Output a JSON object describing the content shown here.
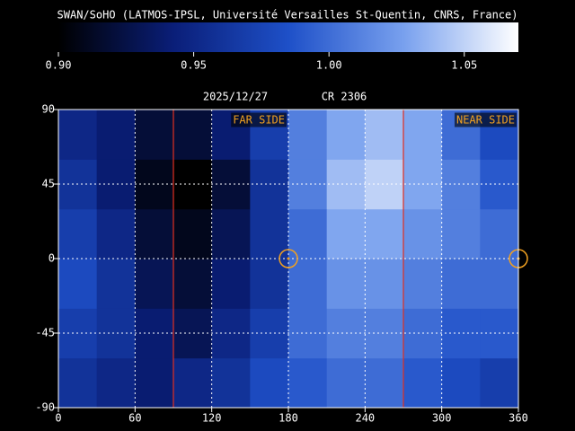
{
  "chart_data": {
    "type": "heatmap",
    "title": "SWAN/SoHO (LATMOS-IPSL, Université Versailles St-Quentin, CNRS, France)",
    "date": "2025/12/27",
    "rotation": "CR 2306",
    "colorlim": [
      0.9,
      1.07
    ],
    "colorticks": [
      {
        "value": 0.9,
        "label": "0.90"
      },
      {
        "value": 0.95,
        "label": "0.95"
      },
      {
        "value": 1.0,
        "label": "1.00"
      },
      {
        "value": 1.05,
        "label": "1.05"
      }
    ],
    "colormap": [
      "#000000",
      "#0a1e78",
      "#1e50c8",
      "#78a0ee",
      "#ffffff"
    ],
    "xlim": [
      0,
      360
    ],
    "ylim": [
      -90,
      90
    ],
    "xticks": [
      0,
      60,
      120,
      180,
      240,
      300,
      360
    ],
    "yticks": [
      -90,
      -45,
      0,
      45,
      90
    ],
    "grid": true,
    "xbins": [
      0,
      30,
      60,
      90,
      120,
      150,
      180,
      210,
      240,
      270,
      300,
      330,
      360
    ],
    "ybins": [
      -90,
      -60,
      -30,
      0,
      30,
      60,
      90
    ],
    "z": [
      [
        0.96,
        0.95,
        0.94,
        0.95,
        0.96,
        0.98,
        0.99,
        1.0,
        1.0,
        0.99,
        0.98,
        0.97
      ],
      [
        0.97,
        0.96,
        0.94,
        0.93,
        0.95,
        0.97,
        1.0,
        1.01,
        1.01,
        1.0,
        0.99,
        0.99
      ],
      [
        0.98,
        0.96,
        0.93,
        0.92,
        0.94,
        0.96,
        1.0,
        1.02,
        1.02,
        1.01,
        1.0,
        1.0
      ],
      [
        0.97,
        0.95,
        0.92,
        0.91,
        0.93,
        0.96,
        1.0,
        1.03,
        1.03,
        1.02,
        1.01,
        1.0
      ],
      [
        0.96,
        0.94,
        0.91,
        0.9,
        0.92,
        0.96,
        1.01,
        1.04,
        1.05,
        1.03,
        1.01,
        0.99
      ],
      [
        0.95,
        0.94,
        0.92,
        0.92,
        0.94,
        0.97,
        1.01,
        1.03,
        1.04,
        1.03,
        1.0,
        0.98
      ]
    ],
    "vlines": [
      90,
      270
    ],
    "vline_color": "#e03020",
    "annotations": [
      {
        "text": "FAR SIDE",
        "x": 180
      },
      {
        "text": "NEAR SIDE",
        "x": 360
      }
    ],
    "annotation_color": "#f0a020",
    "markers": [
      {
        "x": 180,
        "y": 0
      },
      {
        "x": 360,
        "y": 0
      }
    ]
  }
}
